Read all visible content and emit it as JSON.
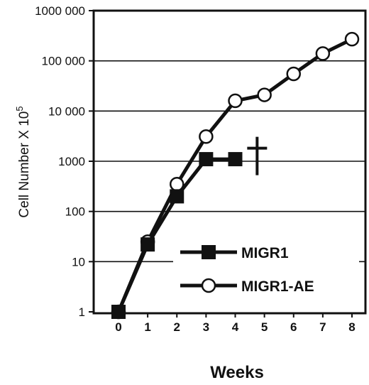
{
  "chart_data": {
    "type": "line",
    "title": "",
    "xlabel": "Weeks",
    "ylabel_main": "Cell Number X 10",
    "ylabel_superscript": "5",
    "y_scale": "log",
    "ylim": [
      1,
      1000000
    ],
    "xlim": [
      0,
      8
    ],
    "grid": "horizontal",
    "legend_position": "lower-right",
    "y_ticks": [
      {
        "value": 1,
        "label": "1"
      },
      {
        "value": 10,
        "label": "10"
      },
      {
        "value": 100,
        "label": "100"
      },
      {
        "value": 1000,
        "label": "1000"
      },
      {
        "value": 10000,
        "label": "10 000"
      },
      {
        "value": 100000,
        "label": "100 000"
      },
      {
        "value": 1000000,
        "label": "1000 000"
      }
    ],
    "x_ticks": [
      {
        "value": 0,
        "label": "0"
      },
      {
        "value": 1,
        "label": "1"
      },
      {
        "value": 2,
        "label": "2"
      },
      {
        "value": 3,
        "label": "3"
      },
      {
        "value": 4,
        "label": "4"
      },
      {
        "value": 5,
        "label": "5"
      },
      {
        "value": 6,
        "label": "6"
      },
      {
        "value": 7,
        "label": "7"
      },
      {
        "value": 8,
        "label": "8"
      }
    ],
    "series": [
      {
        "name": "MIGR1",
        "marker": "filled-square",
        "x": [
          0,
          1,
          2,
          3,
          4
        ],
        "y": [
          1,
          22,
          200,
          1100,
          1100
        ]
      },
      {
        "name": "MIGR1-AE",
        "marker": "open-circle",
        "x": [
          0,
          1,
          2,
          3,
          4,
          5,
          6,
          7,
          8
        ],
        "y": [
          1,
          25,
          350,
          3100,
          16000,
          21000,
          55000,
          140000,
          270000
        ]
      }
    ],
    "annotations": [
      {
        "type": "dagger",
        "x": 4.75,
        "y": 1400,
        "meaning": "death"
      }
    ]
  }
}
